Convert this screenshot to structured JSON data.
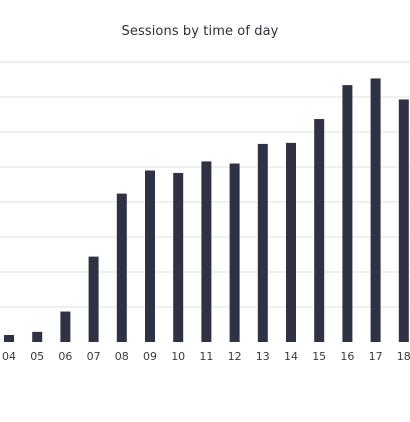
{
  "chart_data": {
    "type": "bar",
    "title": "Sessions by time of day",
    "categories": [
      "04",
      "05",
      "06",
      "07",
      "08",
      "09",
      "10",
      "11",
      "12",
      "13",
      "14",
      "15",
      "16",
      "17",
      "18"
    ],
    "values": [
      2.0,
      2.9,
      8.7,
      24.4,
      42.4,
      49.0,
      48.3,
      51.6,
      51.0,
      56.6,
      56.9,
      63.7,
      73.4,
      75.3,
      69.3
    ],
    "ylim": [
      0,
      80
    ],
    "grid": true,
    "xlabel": "",
    "ylabel": "",
    "colors": {
      "bar": "#2f3245",
      "grid": "#e2e2e2",
      "tick_text": "#3a3a3a"
    }
  }
}
